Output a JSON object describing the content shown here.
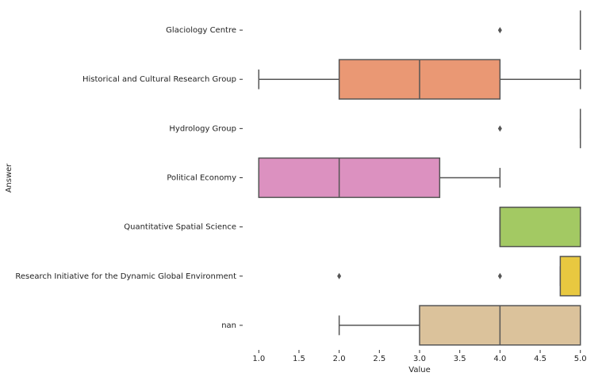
{
  "chart_data": {
    "type": "box",
    "x_label": "Value",
    "y_label": "Answer",
    "categories": [
      "Glaciology Centre",
      "Historical and Cultural Research Group",
      "Hydrology Group",
      "Political Economy",
      "Quantitative Spatial Science",
      "Research Initiative for the Dynamic Global Environment",
      "nan"
    ],
    "colors": [
      "#72b6a1",
      "#ea9874",
      "#8d9fc7",
      "#dc91c0",
      "#a3c963",
      "#e8c840",
      "#dbc29b"
    ],
    "boxes": [
      {
        "min": 5,
        "q1": 5,
        "median": 5,
        "q3": 5,
        "max": 5,
        "outliers": [
          4
        ]
      },
      {
        "min": 1,
        "q1": 2,
        "median": 3,
        "q3": 4,
        "max": 5,
        "outliers": []
      },
      {
        "min": 5,
        "q1": 5,
        "median": 5,
        "q3": 5,
        "max": 5,
        "outliers": [
          4
        ]
      },
      {
        "min": 1,
        "q1": 1,
        "median": 2,
        "q3": 3.25,
        "max": 4,
        "outliers": []
      },
      {
        "min": 4,
        "q1": 4,
        "median": 4,
        "q3": 5,
        "max": 5,
        "outliers": []
      },
      {
        "min": 4.75,
        "q1": 4.75,
        "median": 5,
        "q3": 5,
        "max": 5,
        "outliers": [
          2,
          4
        ]
      },
      {
        "min": 2,
        "q1": 3,
        "median": 4,
        "q3": 5,
        "max": 5,
        "outliers": []
      }
    ],
    "xlim": [
      0.8,
      5.2
    ],
    "xticks": [
      {
        "value": 1,
        "label": "1.0"
      },
      1.5,
      {
        "value": 2,
        "label": "2.0"
      },
      2.5,
      {
        "value": 3,
        "label": "3.0"
      },
      3.5,
      {
        "value": 4,
        "label": "4.0"
      },
      4.5,
      {
        "value": 5,
        "label": "5.0"
      }
    ]
  }
}
